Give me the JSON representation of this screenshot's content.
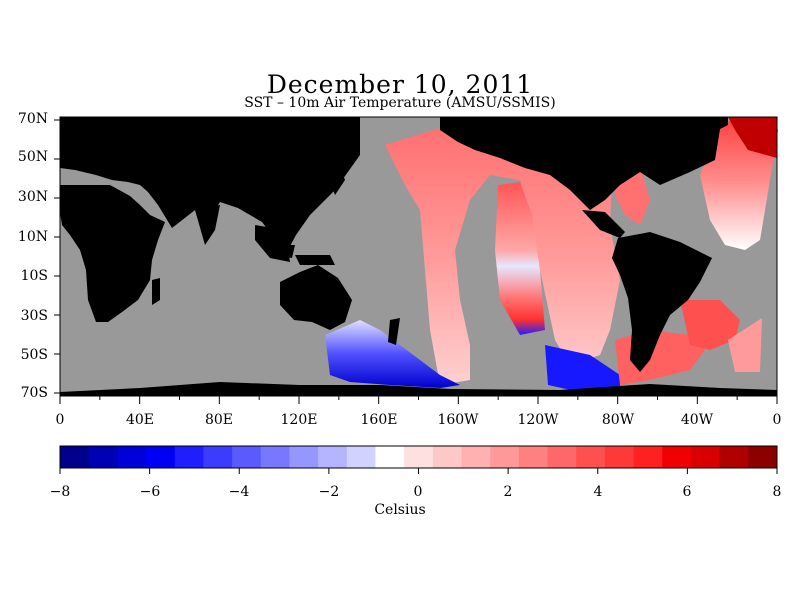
{
  "title": "December 10, 2011",
  "subtitle": "SST – 10m Air Temperature (AMSU/SSMIS)",
  "map": {
    "type": "heatmap",
    "lat_labels": [
      "70N",
      "50N",
      "30N",
      "10N",
      "10S",
      "30S",
      "50S",
      "70S"
    ],
    "lon_labels": [
      "0",
      "40E",
      "80E",
      "120E",
      "160E",
      "160W",
      "120W",
      "80W",
      "40W",
      "0"
    ],
    "colors": {
      "land": "#000000",
      "no_data": "#999999"
    }
  },
  "colorbar": {
    "range": [
      -8,
      8
    ],
    "tick_labels": [
      "−8",
      "−6",
      "−4",
      "−2",
      "0",
      "2",
      "4",
      "6",
      "8"
    ],
    "unit": "Celsius",
    "colors": [
      "#00008c",
      "#0000b4",
      "#0000d8",
      "#0000f5",
      "#1e1eff",
      "#3c3cff",
      "#5a5aff",
      "#7878ff",
      "#9696ff",
      "#b4b4ff",
      "#d2d2ff",
      "#ffffff",
      "#ffe0e0",
      "#ffc8c8",
      "#ffb0b0",
      "#ff9898",
      "#ff8080",
      "#ff6868",
      "#ff5050",
      "#ff3838",
      "#ff2020",
      "#f00000",
      "#d80000",
      "#b00000",
      "#8c0000"
    ]
  }
}
